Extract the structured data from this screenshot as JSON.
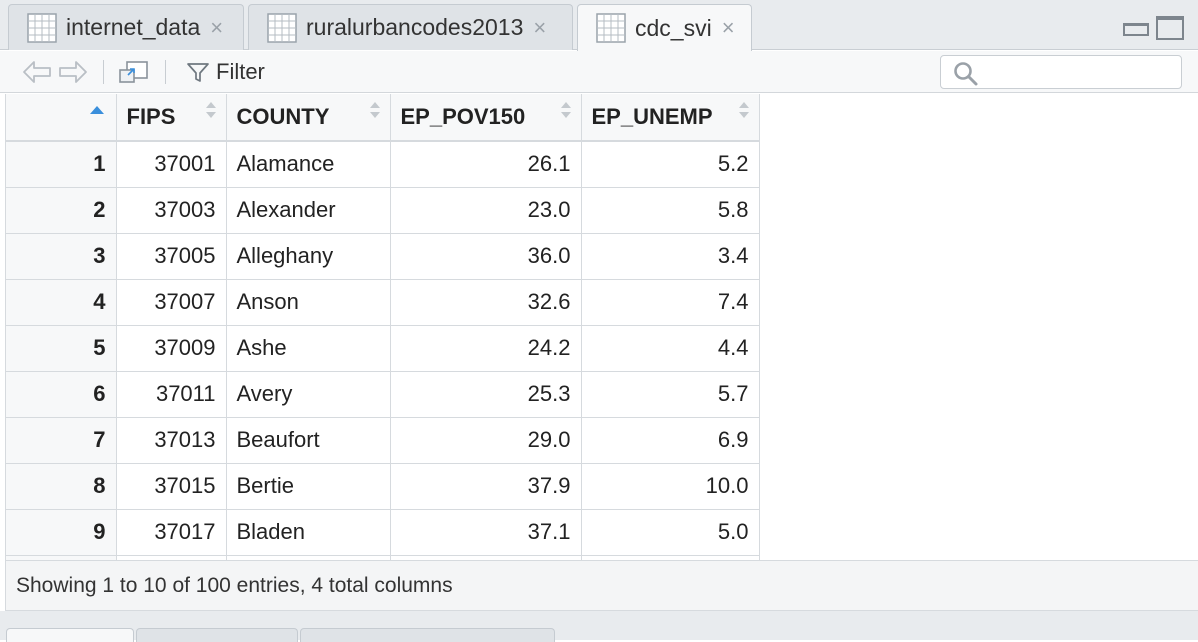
{
  "tabs": [
    {
      "label": "internet_data",
      "active": false
    },
    {
      "label": "ruralurbancodes2013",
      "active": false
    },
    {
      "label": "cdc_svi",
      "active": true
    }
  ],
  "toolbar": {
    "filter_label": "Filter",
    "search_placeholder": ""
  },
  "table": {
    "columns": [
      "FIPS",
      "COUNTY",
      "EP_POV150",
      "EP_UNEMP"
    ],
    "rows": [
      {
        "n": "1",
        "fips": "37001",
        "county": "Alamance",
        "pov": "26.1",
        "unemp": "5.2"
      },
      {
        "n": "2",
        "fips": "37003",
        "county": "Alexander",
        "pov": "23.0",
        "unemp": "5.8"
      },
      {
        "n": "3",
        "fips": "37005",
        "county": "Alleghany",
        "pov": "36.0",
        "unemp": "3.4"
      },
      {
        "n": "4",
        "fips": "37007",
        "county": "Anson",
        "pov": "32.6",
        "unemp": "7.4"
      },
      {
        "n": "5",
        "fips": "37009",
        "county": "Ashe",
        "pov": "24.2",
        "unemp": "4.4"
      },
      {
        "n": "6",
        "fips": "37011",
        "county": "Avery",
        "pov": "25.3",
        "unemp": "5.7"
      },
      {
        "n": "7",
        "fips": "37013",
        "county": "Beaufort",
        "pov": "29.0",
        "unemp": "6.9"
      },
      {
        "n": "8",
        "fips": "37015",
        "county": "Bertie",
        "pov": "37.9",
        "unemp": "10.0"
      },
      {
        "n": "9",
        "fips": "37017",
        "county": "Bladen",
        "pov": "37.1",
        "unemp": "5.0"
      }
    ]
  },
  "footer": {
    "status": "Showing 1 to 10 of 100 entries, 4 total columns"
  },
  "icons": {
    "tab_icon": "grid-icon",
    "back": "back-arrow-icon",
    "forward": "forward-arrow-icon",
    "popout": "popout-icon",
    "filter": "filter-icon",
    "search": "search-icon"
  }
}
